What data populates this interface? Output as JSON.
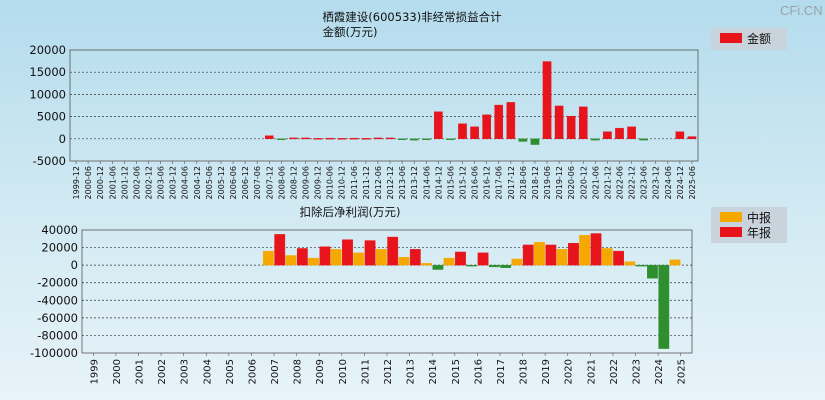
{
  "brand": "CFi.CN",
  "colors": {
    "red": "#e8141b",
    "green": "#2f8f2f",
    "orange": "#f5a900",
    "grid": "#333333"
  },
  "chart_data": [
    {
      "type": "bar",
      "title": "栖霞建设(600533)非经常损益合计",
      "ylabel": "金额(万元)",
      "legend": [
        "金额"
      ],
      "legend_position": "top-right",
      "ylim": [
        -5000,
        20000
      ],
      "yticks": [
        -5000,
        0,
        5000,
        10000,
        15000,
        20000
      ],
      "categories": [
        "1999-12",
        "2000-06",
        "2000-12",
        "2001-06",
        "2001-12",
        "2002-06",
        "2002-12",
        "2003-06",
        "2003-12",
        "2004-06",
        "2004-12",
        "2005-06",
        "2005-12",
        "2006-06",
        "2006-12",
        "2007-06",
        "2007-12",
        "2008-06",
        "2008-12",
        "2009-06",
        "2009-12",
        "2010-06",
        "2010-12",
        "2011-06",
        "2011-12",
        "2012-06",
        "2012-12",
        "2013-06",
        "2013-12",
        "2014-06",
        "2014-12",
        "2015-06",
        "2015-12",
        "2016-06",
        "2016-12",
        "2017-06",
        "2017-12",
        "2018-06",
        "2018-12",
        "2019-06",
        "2019-12",
        "2020-06",
        "2020-12",
        "2021-06",
        "2021-12",
        "2022-06",
        "2022-12",
        "2023-06",
        "2023-12",
        "2024-06",
        "2024-12",
        "2025-06"
      ],
      "values": [
        0,
        0,
        0,
        0,
        0,
        0,
        0,
        0,
        0,
        0,
        0,
        0,
        0,
        0,
        0,
        0,
        700,
        -100,
        200,
        200,
        100,
        150,
        100,
        150,
        100,
        200,
        200,
        -200,
        -300,
        -200,
        6100,
        -100,
        3400,
        2700,
        5400,
        7600,
        8200,
        -600,
        -1300,
        17400,
        7400,
        5100,
        7200,
        -300,
        1600,
        2400,
        2700,
        -300,
        0,
        0,
        1600,
        500
      ]
    },
    {
      "type": "bar",
      "title": "扣除后净利润(万元)",
      "legend": [
        "中报",
        "年报"
      ],
      "legend_position": "top-right",
      "ylim": [
        -100000,
        40000
      ],
      "yticks": [
        -100000,
        -80000,
        -60000,
        -40000,
        -20000,
        0,
        20000,
        40000
      ],
      "categories": [
        "1999",
        "2000",
        "2001",
        "2002",
        "2003",
        "2004",
        "2005",
        "2006",
        "2007",
        "2008",
        "2009",
        "2010",
        "2011",
        "2012",
        "2013",
        "2014",
        "2015",
        "2016",
        "2017",
        "2018",
        "2019",
        "2020",
        "2021",
        "2022",
        "2023",
        "2024",
        "2025"
      ],
      "series": [
        {
          "name": "中报",
          "values": [
            null,
            null,
            null,
            null,
            null,
            null,
            null,
            null,
            16000,
            11000,
            8000,
            18000,
            14000,
            18000,
            9000,
            2000,
            8000,
            -1000,
            -2000,
            7000,
            26000,
            18000,
            34000,
            19000,
            4000,
            -15000,
            6000
          ]
        },
        {
          "name": "年报",
          "values": [
            null,
            null,
            null,
            null,
            null,
            null,
            null,
            null,
            35000,
            19000,
            21000,
            29000,
            28000,
            32000,
            18000,
            -5000,
            15000,
            14000,
            -3000,
            23000,
            23000,
            25000,
            36000,
            16000,
            -1000,
            -95000,
            null
          ]
        }
      ]
    }
  ]
}
